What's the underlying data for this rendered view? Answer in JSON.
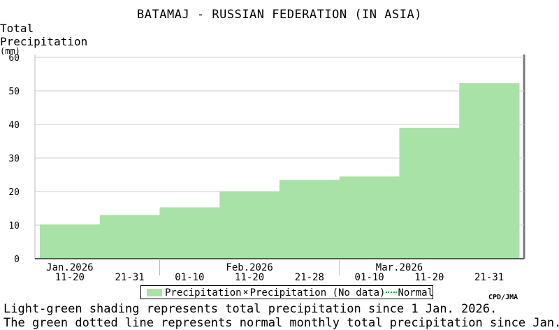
{
  "title": "BATAMAJ - RUSSIAN FEDERATION (IN ASIA)",
  "ylabel_line1": "Total",
  "ylabel_line2": "Precipitation",
  "ylabel_unit": "(mm)",
  "credit": "CPD/JMA",
  "legend": {
    "precipitation": "Precipitation",
    "nodata_marker": "×",
    "nodata": "Precipitation (No data)",
    "normal": "Normal"
  },
  "notes": [
    "Light-green shading represents total precipitation since 1 Jan. 2026.",
    "The green dotted line represents normal monthly total precipitation since Jan."
  ],
  "colors": {
    "precip_fill": "#a9e2a6",
    "normal_line": "#2e9a2e",
    "grid": "#cccccc"
  },
  "chart_data": {
    "type": "area",
    "title": "BATAMAJ - RUSSIAN FEDERATION (IN ASIA)",
    "ylabel": "Total Precipitation (mm)",
    "ylim": [
      0,
      60
    ],
    "yticks": [
      0,
      10,
      20,
      30,
      40,
      50,
      60
    ],
    "grid": true,
    "months": [
      "Jan.2026",
      "Feb.2026",
      "Mar.2026"
    ],
    "periods": [
      "11-20",
      "21-31",
      "01-10",
      "11-20",
      "21-28",
      "01-10",
      "11-20",
      "21-31"
    ],
    "period_month": [
      0,
      0,
      1,
      1,
      1,
      2,
      2,
      2
    ],
    "series": [
      {
        "name": "Precipitation",
        "values": [
          10.2,
          13.0,
          15.3,
          20.1,
          23.5,
          24.5,
          39.0,
          52.3
        ]
      }
    ],
    "legend_position": "bottom"
  }
}
